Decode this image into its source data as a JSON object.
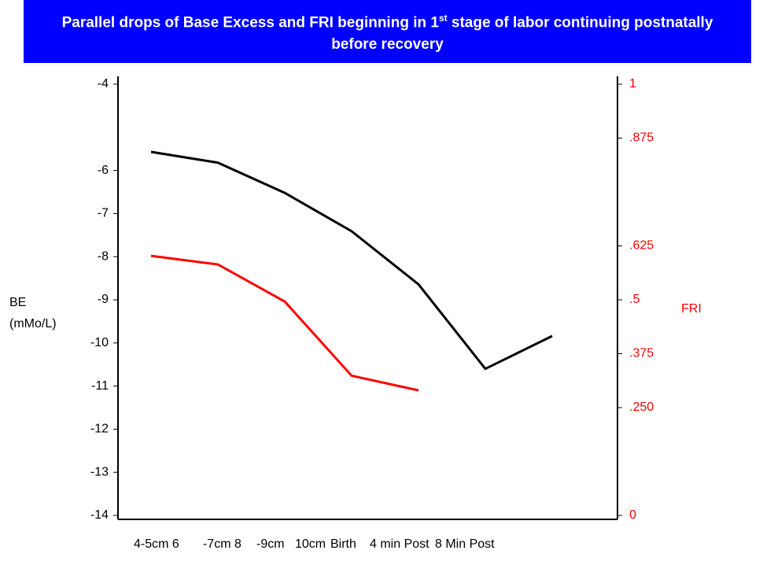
{
  "chart_data": {
    "type": "line",
    "title": {
      "before": "Parallel drops of Base Excess and FRI beginning in 1",
      "sup": "st",
      "after": " stage of labor continuing postnatally before recovery"
    },
    "y_label": [
      "BE",
      "(mMo/L)"
    ],
    "y2_label": "FRI",
    "categories": [
      "4-5cm 6",
      "-7cm 8",
      "-9cm",
      "10cm",
      "Birth",
      "4 min Post",
      "8 Min Post"
    ],
    "ylim": [
      -14,
      -4
    ],
    "yticks": [
      -4,
      -6,
      -7,
      -8,
      -9,
      -10,
      -11,
      -12,
      -13,
      -14
    ],
    "y2lim": [
      0,
      1
    ],
    "y2ticks": [
      {
        "value": 1,
        "label": "1"
      },
      {
        "value": 0.875,
        "label": ".875"
      },
      {
        "value": 0.625,
        "label": ".625"
      },
      {
        "value": 0.5,
        "label": ".5"
      },
      {
        "value": 0.375,
        "label": ".375"
      },
      {
        "value": 0.25,
        "label": ".250"
      },
      {
        "value": 0,
        "label": "0"
      }
    ],
    "series": [
      {
        "color": "#000000",
        "values": [
          -5.57,
          -5.82,
          -6.52,
          -7.41,
          -8.64,
          -10.6,
          -9.84
        ]
      },
      {
        "color": "#ff0000",
        "axis": "y2",
        "values": [
          0.602,
          0.582,
          0.496,
          0.324,
          0.29,
          null,
          null
        ]
      }
    ]
  }
}
